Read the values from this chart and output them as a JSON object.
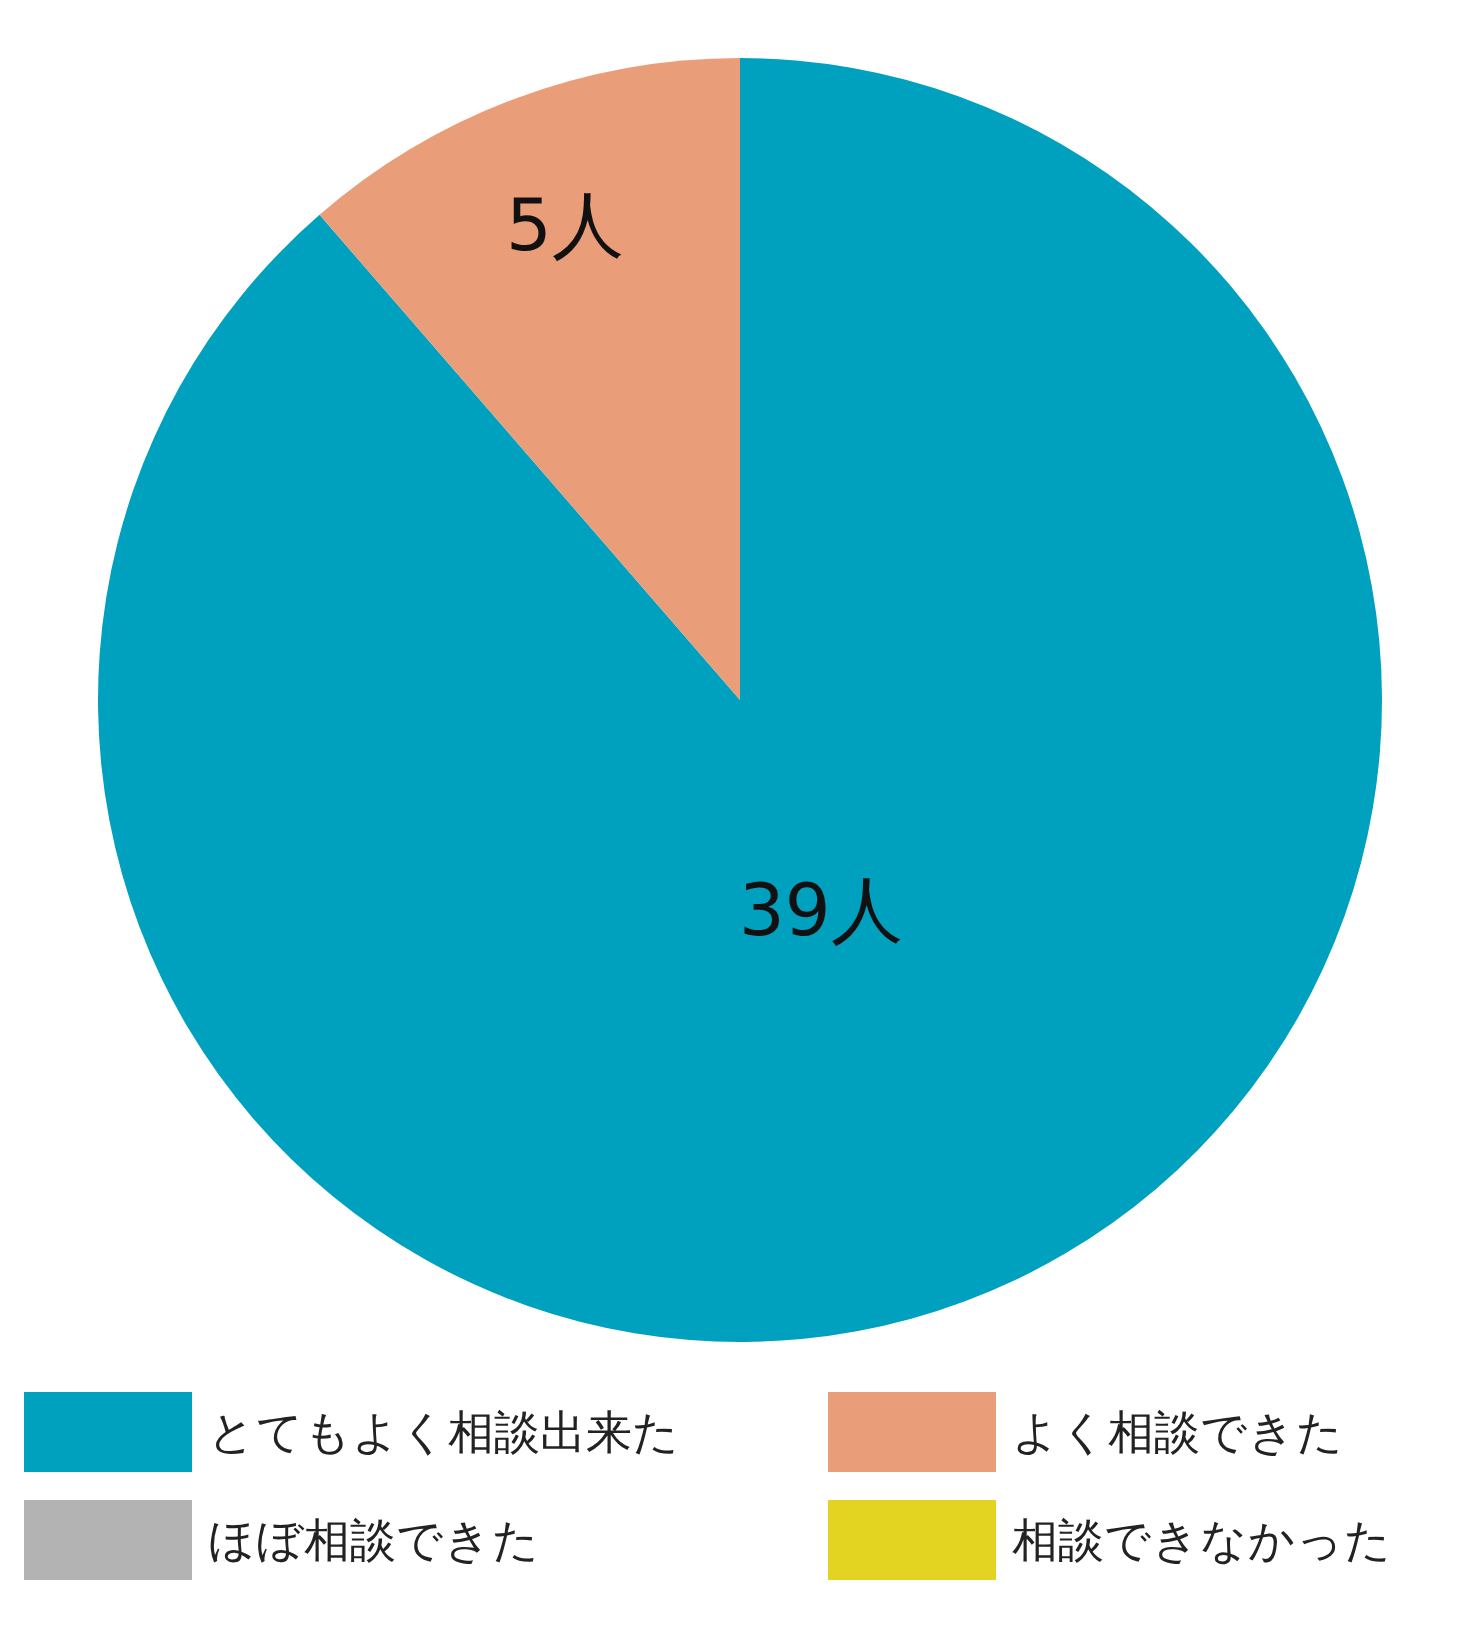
{
  "chart_data": {
    "type": "pie",
    "categories": [
      "とてもよく相談出来た",
      "よく相談できた",
      "ほぼ相談できた",
      "相談できなかった"
    ],
    "values": [
      39,
      5,
      0,
      0
    ],
    "colors": [
      "#00a0bf",
      "#ea9d79",
      "#b3b3b3",
      "#e3d421"
    ],
    "value_labels": [
      "39人",
      "5人",
      null,
      null
    ],
    "legend": "bottom"
  }
}
